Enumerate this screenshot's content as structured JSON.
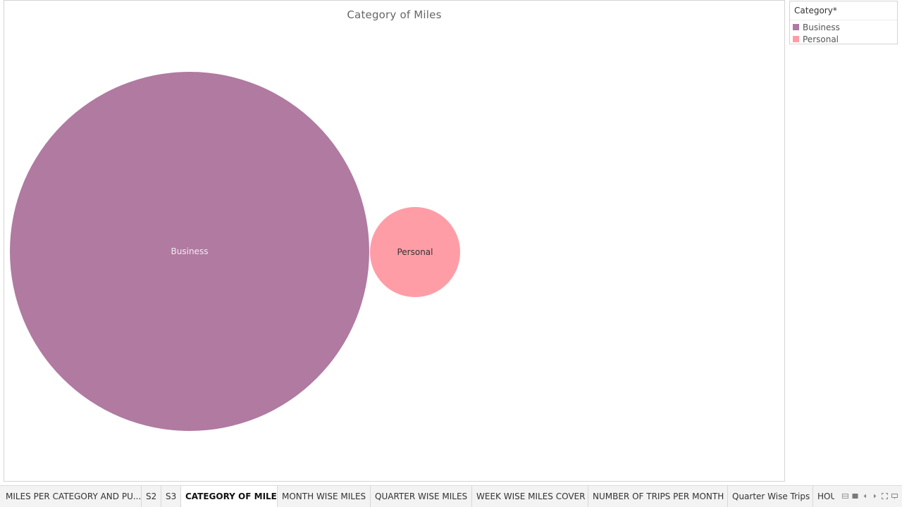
{
  "viz": {
    "title": "Category of Miles"
  },
  "bubbles": [
    {
      "label": "Business",
      "color": "#b07aa1"
    },
    {
      "label": "Personal",
      "color": "#ff9da7"
    }
  ],
  "legend": {
    "title": "Category*",
    "items": [
      {
        "label": "Business",
        "color": "#b07aa1"
      },
      {
        "label": "Personal",
        "color": "#ff9da7"
      }
    ]
  },
  "tabs": [
    {
      "label": "MILES PER CATEGORY AND PU..."
    },
    {
      "label": "S2"
    },
    {
      "label": "S3"
    },
    {
      "label": "CATEGORY OF MILES",
      "active": true
    },
    {
      "label": "MONTH WISE MILES"
    },
    {
      "label": "QUARTER WISE MILES"
    },
    {
      "label": "WEEK WISE MILES COVER"
    },
    {
      "label": "NUMBER OF TRIPS PER MONTH"
    },
    {
      "label": "Quarter Wise Trips"
    },
    {
      "label": "HOU"
    }
  ],
  "tab_nav_icons": [
    "show-filmstrip-icon",
    "show-tabs-icon",
    "previous-sheet-icon",
    "next-sheet-icon",
    "fit-screen-icon",
    "presentation-mode-icon"
  ]
}
